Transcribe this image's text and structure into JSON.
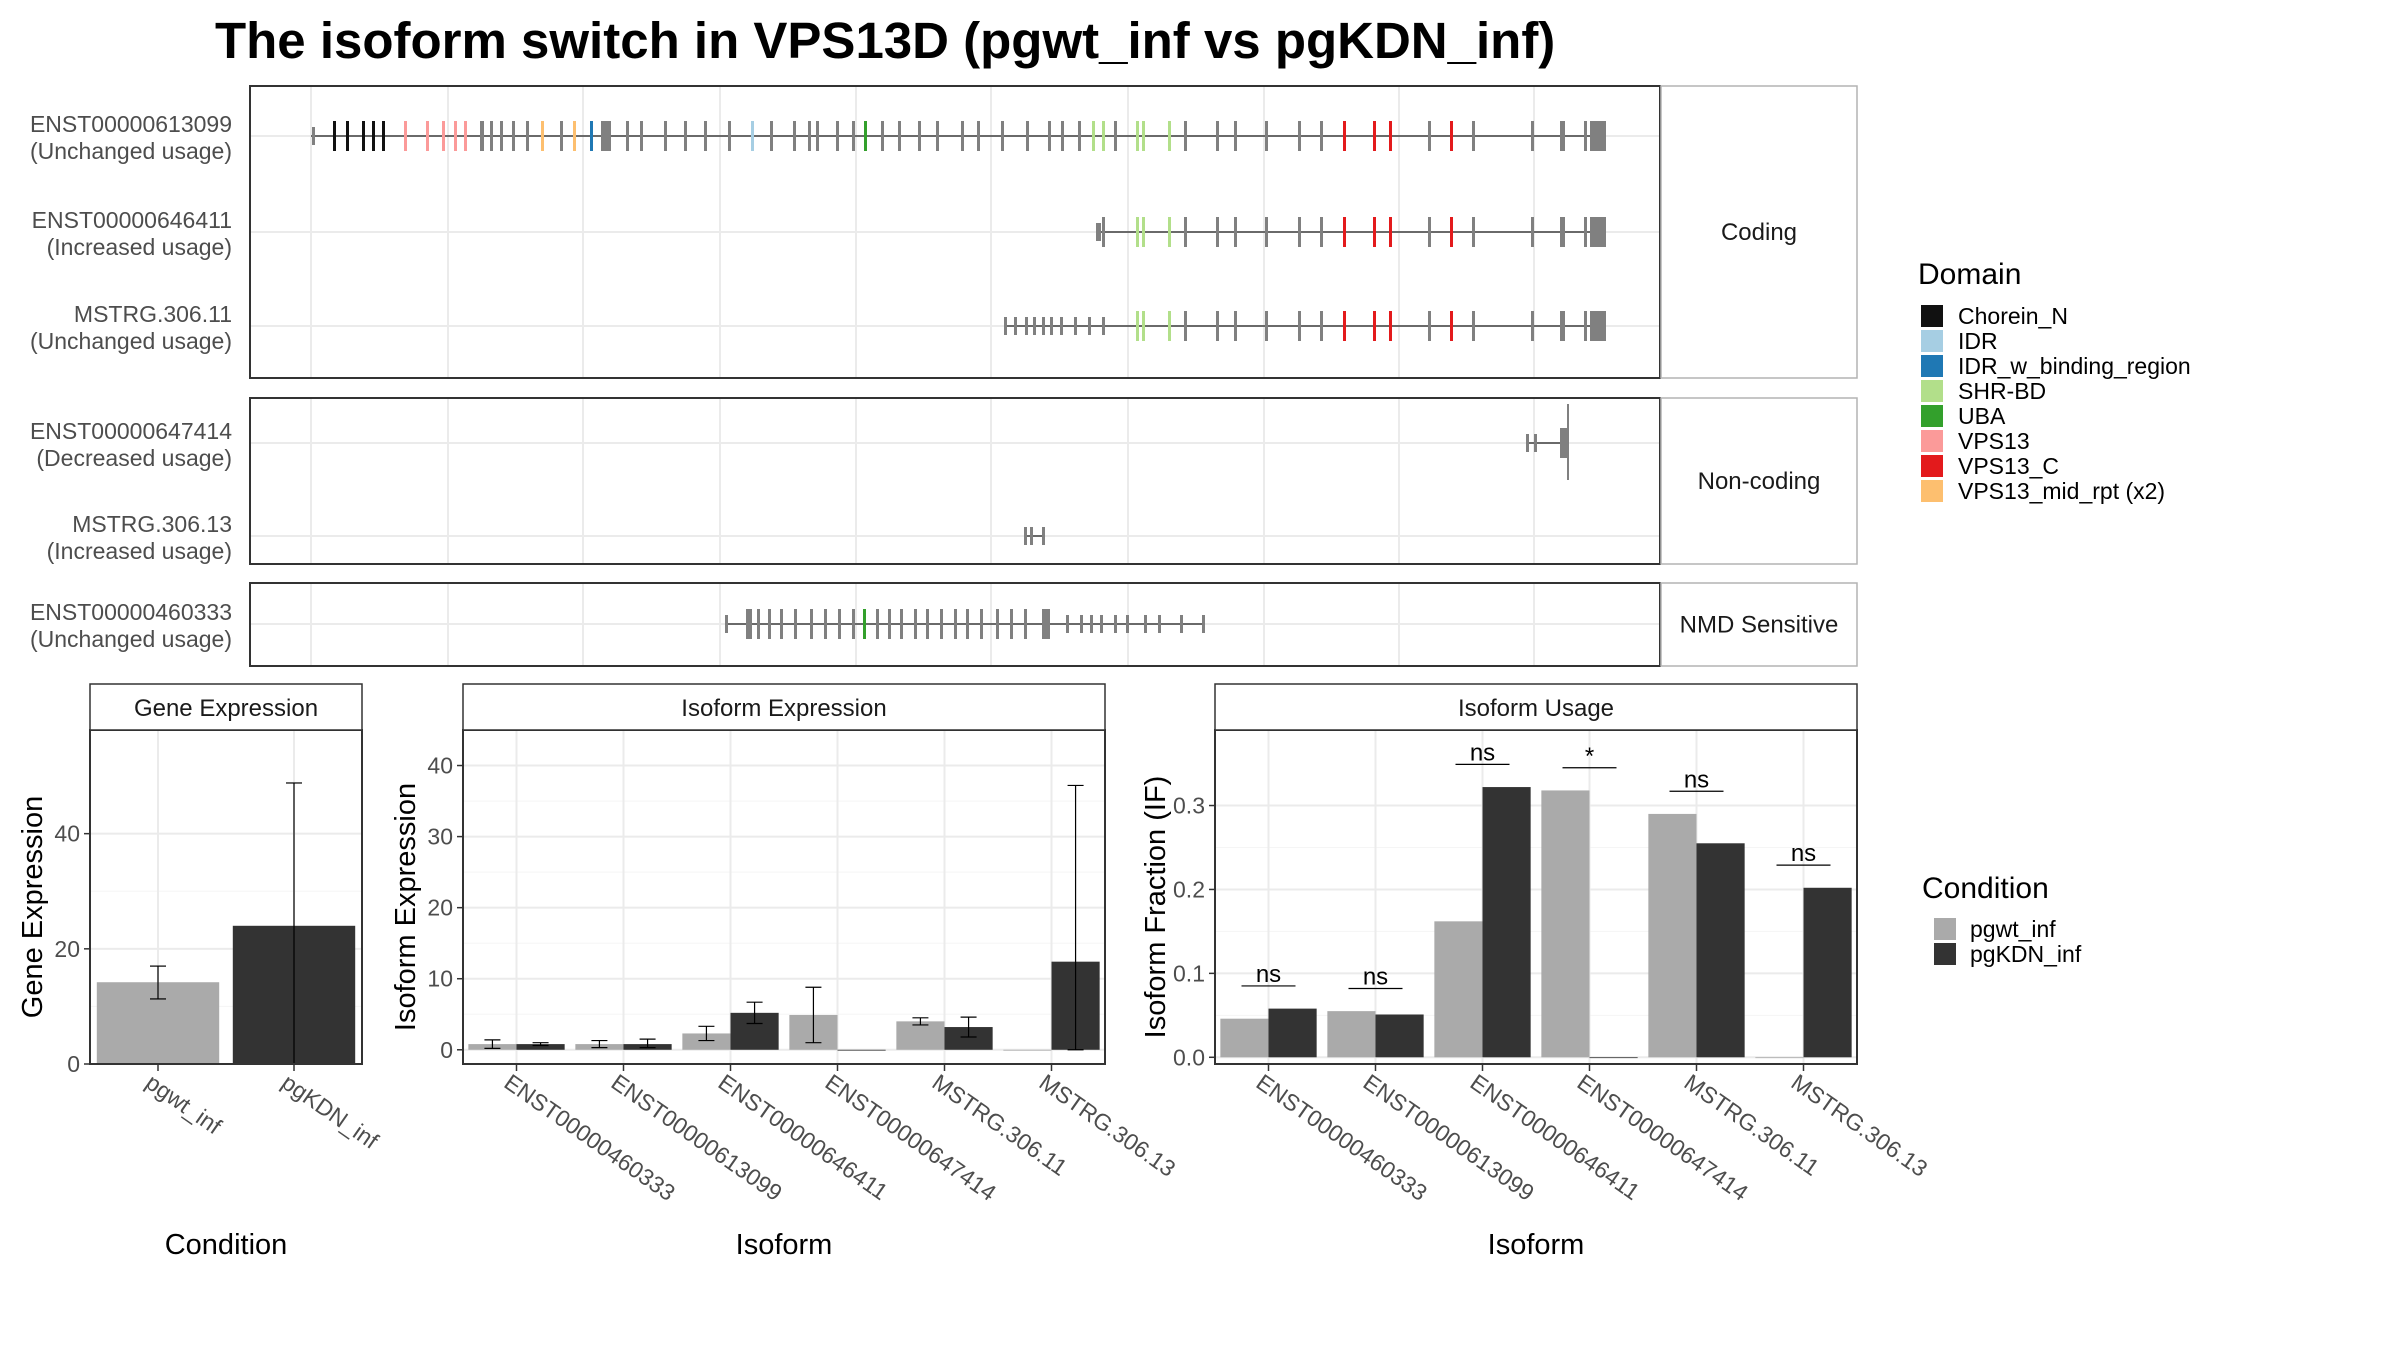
{
  "title": "The isoform switch in VPS13D (pgwt_inf vs pgKDN_inf)",
  "colors": {
    "exon": "#808080",
    "intron": "#404040",
    "grid": "#ebebeb",
    "panel_border": "#333333",
    "strip_border": "#b3b3b3",
    "pgwt_inf": "#aaaaaa",
    "pgKDN_inf": "#333333"
  },
  "structure": {
    "facets": [
      {
        "label": "Coding",
        "isoforms": [
          {
            "id": "ENST00000613099",
            "usage": "(Unchanged usage)"
          },
          {
            "id": "ENST00000646411",
            "usage": "(Increased usage)"
          },
          {
            "id": "MSTRG.306.11",
            "usage": "(Unchanged usage)"
          }
        ]
      },
      {
        "label": "Non-coding",
        "isoforms": [
          {
            "id": "ENST00000647414",
            "usage": "(Decreased usage)"
          },
          {
            "id": "MSTRG.306.13",
            "usage": "(Increased usage)"
          }
        ]
      },
      {
        "label": "NMD Sensitive",
        "isoforms": [
          {
            "id": "ENST00000460333",
            "usage": "(Unchanged usage)"
          }
        ]
      }
    ],
    "domain_legend_title": "Domain",
    "domains": [
      {
        "name": "Chorein_N",
        "color": "#111111"
      },
      {
        "name": "IDR",
        "color": "#a6cee3"
      },
      {
        "name": "IDR_w_binding_region",
        "color": "#1f78b4"
      },
      {
        "name": "SHR-BD",
        "color": "#b2df8a"
      },
      {
        "name": "UBA",
        "color": "#33a02c"
      },
      {
        "name": "VPS13",
        "color": "#fb9a99"
      },
      {
        "name": "VPS13_C",
        "color": "#e31a1c"
      },
      {
        "name": "VPS13_mid_rpt (x2)",
        "color": "#fdbf6f"
      }
    ]
  },
  "chart_data": [
    {
      "type": "bar",
      "title": "Gene Expression",
      "xlabel": "Condition",
      "ylabel": "Gene Expression",
      "categories": [
        "pgwt_inf",
        "pgKDN_inf"
      ],
      "values": [
        14.2,
        24.0
      ],
      "errors": [
        [
          11.3,
          17.0
        ],
        [
          0.0,
          48.8
        ]
      ],
      "ylim": [
        0,
        58
      ],
      "yticks": [
        0,
        20,
        40
      ]
    },
    {
      "type": "bar",
      "title": "Isoform Expression",
      "xlabel": "Isoform",
      "ylabel": "Isoform Expression",
      "categories": [
        "ENST00000460333",
        "ENST00000613099",
        "ENST00000646411",
        "ENST00000647414",
        "MSTRG.306.11",
        "MSTRG.306.13"
      ],
      "series": [
        {
          "name": "pgwt_inf",
          "values": [
            0.8,
            0.8,
            2.3,
            4.9,
            4.0,
            0.0
          ],
          "errors": [
            [
              0.2,
              1.4
            ],
            [
              0.3,
              1.3
            ],
            [
              1.3,
              3.3
            ],
            [
              1.0,
              8.8
            ],
            [
              3.5,
              4.5
            ],
            [
              0.0,
              0.0
            ]
          ]
        },
        {
          "name": "pgKDN_inf",
          "values": [
            0.8,
            0.8,
            5.2,
            0.0,
            3.2,
            12.4
          ],
          "errors": [
            [
              0.6,
              1.0
            ],
            [
              0.3,
              1.5
            ],
            [
              3.7,
              6.7
            ],
            [
              0.0,
              0.0
            ],
            [
              1.8,
              4.6
            ],
            [
              0.0,
              37.2
            ]
          ]
        }
      ],
      "ylim": [
        -2,
        45
      ],
      "yticks": [
        0,
        10,
        20,
        30,
        40
      ]
    },
    {
      "type": "bar",
      "title": "Isoform Usage",
      "xlabel": "Isoform",
      "ylabel": "Isoform Fraction (IF)",
      "categories": [
        "ENST00000460333",
        "ENST00000613099",
        "ENST00000646411",
        "ENST00000647414",
        "MSTRG.306.11",
        "MSTRG.306.13"
      ],
      "series": [
        {
          "name": "pgwt_inf",
          "values": [
            0.046,
            0.055,
            0.162,
            0.318,
            0.29,
            0.0
          ]
        },
        {
          "name": "pgKDN_inf",
          "values": [
            0.058,
            0.051,
            0.322,
            0.0,
            0.255,
            0.202
          ]
        }
      ],
      "significance": [
        "ns",
        "ns",
        "ns",
        "*",
        "ns",
        "ns"
      ],
      "ylim": [
        -0.008,
        0.39
      ],
      "yticks": [
        0.0,
        0.1,
        0.2,
        0.3
      ],
      "ytick_labels": [
        "0.0",
        "0.1",
        "0.2",
        "0.3"
      ]
    }
  ],
  "condition_legend_title": "Condition",
  "conditions": [
    "pgwt_inf",
    "pgKDN_inf"
  ]
}
